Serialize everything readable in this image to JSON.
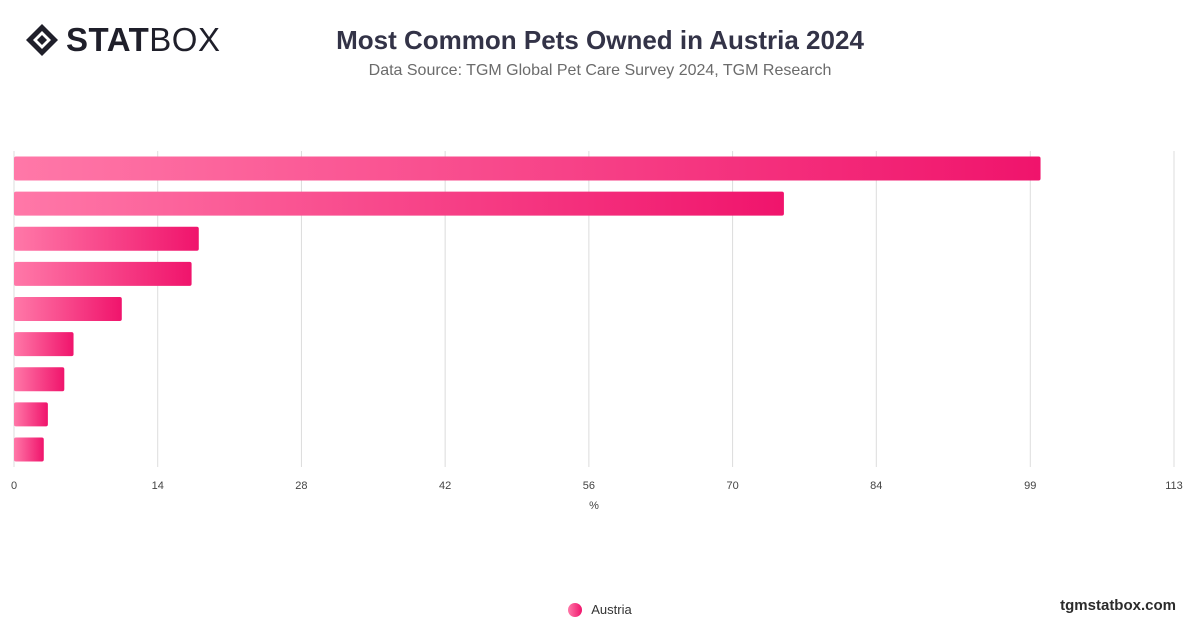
{
  "header": {
    "brand_bold": "STAT",
    "brand_light": "BOX",
    "title": "Most Common Pets Owned in Austria 2024",
    "subtitle": "Data Source: TGM Global Pet Care Survey 2024, TGM Research"
  },
  "colors": {
    "bar_start": "#ff78a8",
    "bar_end": "#f0146c",
    "grid": "#dcdcdc",
    "axis_text": "#444444"
  },
  "chart_data": {
    "type": "bar",
    "orientation": "horizontal",
    "title": "Most Common Pets Owned in Austria 2024",
    "xlabel": "%",
    "ylabel": "",
    "xlim": [
      0,
      113
    ],
    "xticks": [
      0,
      14,
      28,
      42,
      56,
      70,
      84,
      99,
      113
    ],
    "grid": true,
    "legend_position": "bottom-center",
    "series": [
      {
        "name": "Austria",
        "values": [
          100,
          75,
          18,
          17.3,
          10.5,
          5.8,
          4.9,
          3.3,
          2.9
        ]
      }
    ]
  },
  "legend": {
    "label": "Austria"
  },
  "footer": {
    "site": "tgmstatbox.com"
  }
}
